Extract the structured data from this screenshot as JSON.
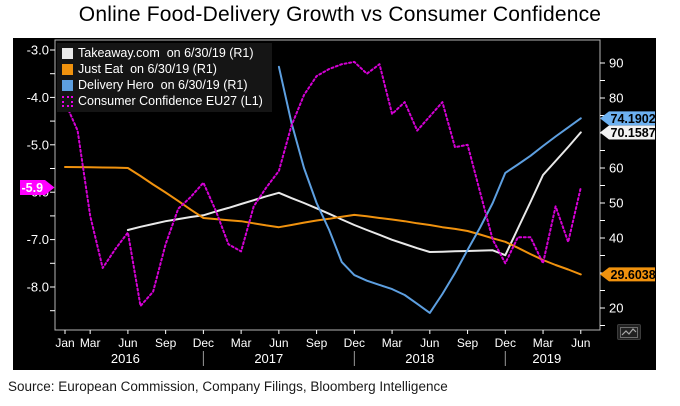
{
  "title": "Online Food-Delivery Growth vs Consumer Confidence",
  "source_line": "Source:  European Commission, Company Filings, Bloomberg Intelligence",
  "colors": {
    "background_panel": "#000000",
    "takeaway": "#e9e9e9",
    "just_eat": "#f0920e",
    "delivery_hero": "#5d9fe0",
    "consumer_confidence": "#d400d4",
    "left_badge_bg": "#ff00ff",
    "badge_blue_bg": "#6db1f1",
    "badge_white_bg": "#f2f2f2",
    "badge_orange_bg": "#f0920e",
    "axis_text": "#ffffff",
    "frame": "#b4b4b4"
  },
  "legend": [
    {
      "id": "takeaway",
      "label": "Takeaway.com  on 6/30/19 (R1)",
      "color": "#e9e9e9",
      "marker": "square"
    },
    {
      "id": "just-eat",
      "label": "Just Eat  on 6/30/19 (R1)",
      "color": "#f0920e",
      "marker": "square"
    },
    {
      "id": "delivery-hero",
      "label": "Delivery Hero  on 6/30/19 (R1)",
      "color": "#5d9fe0",
      "marker": "square"
    },
    {
      "id": "consumer-confidence",
      "label": "Consumer Confidence EU27 (L1)",
      "color": "#e800e8",
      "marker": "dotted-outline"
    }
  ],
  "chart_data": {
    "type": "line",
    "title": "Online Food-Delivery Growth vs Consumer Confidence",
    "x_unit": "monthly, Jan 2016 - Jun 2019",
    "x_categories": [
      "Jan 2016",
      "Feb 2016",
      "Mar 2016",
      "Apr 2016",
      "May 2016",
      "Jun 2016",
      "Jul 2016",
      "Aug 2016",
      "Sep 2016",
      "Oct 2016",
      "Nov 2016",
      "Dec 2016",
      "Jan 2017",
      "Feb 2017",
      "Mar 2017",
      "Apr 2017",
      "May 2017",
      "Jun 2017",
      "Jul 2017",
      "Aug 2017",
      "Sep 2017",
      "Oct 2017",
      "Nov 2017",
      "Dec 2017",
      "Jan 2018",
      "Feb 2018",
      "Mar 2018",
      "Apr 2018",
      "May 2018",
      "Jun 2018",
      "Jul 2018",
      "Aug 2018",
      "Sep 2018",
      "Oct 2018",
      "Nov 2018",
      "Dec 2018",
      "Jan 2019",
      "Feb 2019",
      "Mar 2019",
      "Apr 2019",
      "May 2019",
      "Jun 2019"
    ],
    "left_axis": {
      "side": "L1",
      "range": [
        -8.6,
        -3.0
      ],
      "minor_step": 0.5,
      "ticks": [
        {
          "v": -3.0,
          "label": "-3.0"
        },
        {
          "v": -4.0,
          "label": "-4.0"
        },
        {
          "v": -5.0,
          "label": "-5.0"
        },
        {
          "v": -6.0,
          "label": "-6.0"
        },
        {
          "v": -7.0,
          "label": "-7.0"
        },
        {
          "v": -8.0,
          "label": "-8.0"
        }
      ],
      "badge": {
        "text": "-5.9",
        "value": -5.9,
        "bg": "#ff00ff",
        "fg": "#ffffff"
      }
    },
    "right_axis": {
      "side": "R1",
      "range": [
        14,
        93.5
      ],
      "minor_step": 5,
      "ticks": [
        {
          "v": 90,
          "label": "90"
        },
        {
          "v": 80,
          "label": "80"
        },
        {
          "v": 70,
          "label": "70"
        },
        {
          "v": 60,
          "label": "60"
        },
        {
          "v": 50,
          "label": "50"
        },
        {
          "v": 40,
          "label": "40"
        },
        {
          "v": 30,
          "label": "30"
        },
        {
          "v": 20,
          "label": "20"
        }
      ],
      "badges": [
        {
          "text": "74.1902",
          "value": 74.1902,
          "bg": "#6db1f1",
          "fg": "#000000",
          "series": "Delivery Hero"
        },
        {
          "text": "70.1587",
          "value": 70.1587,
          "bg": "#f2f2f2",
          "fg": "#000000",
          "series": "Takeaway.com"
        },
        {
          "text": "29.6038",
          "value": 29.6038,
          "bg": "#f0920e",
          "fg": "#000000",
          "series": "Just Eat"
        }
      ]
    },
    "x_axis": {
      "month_ticks": [
        {
          "m": 0,
          "label": "Jan"
        },
        {
          "m": 2,
          "label": "Mar"
        },
        {
          "m": 5,
          "label": "Jun"
        },
        {
          "m": 8,
          "label": "Sep"
        },
        {
          "m": 11,
          "label": "Dec"
        },
        {
          "m": 14,
          "label": "Mar"
        },
        {
          "m": 17,
          "label": "Jun"
        },
        {
          "m": 20,
          "label": "Sep"
        },
        {
          "m": 23,
          "label": "Dec"
        },
        {
          "m": 26,
          "label": "Mar"
        },
        {
          "m": 29,
          "label": "Jun"
        },
        {
          "m": 32,
          "label": "Sep"
        },
        {
          "m": 35,
          "label": "Dec"
        },
        {
          "m": 38,
          "label": "Mar"
        },
        {
          "m": 41,
          "label": "Jun"
        }
      ],
      "year_labels": [
        {
          "m": 4.8,
          "label": "2016"
        },
        {
          "m": 16.2,
          "label": "2017"
        },
        {
          "m": 28.2,
          "label": "2018"
        },
        {
          "m": 38.3,
          "label": "2019"
        }
      ],
      "year_separators_m": [
        11,
        23,
        35
      ]
    },
    "series": [
      {
        "name": "Takeaway.com  on 6/30/19",
        "id": "takeaway",
        "axis": "R1",
        "color": "#e9e9e9",
        "style": "solid",
        "values": [
          null,
          null,
          null,
          null,
          null,
          42.3,
          43.2,
          44,
          44.8,
          45.4,
          46,
          46.5,
          47.6,
          48.6,
          49.7,
          50.8,
          51.9,
          52.9,
          51.4,
          50,
          48.5,
          46.9,
          45.3,
          43.7,
          42.3,
          40.9,
          39.5,
          38.3,
          37.1,
          36,
          36.1,
          36.2,
          36.3,
          36.4,
          36.5,
          35.1,
          42.7,
          50.3,
          58,
          62,
          66,
          70.1587
        ]
      },
      {
        "name": "Just Eat  on 6/30/19",
        "id": "just-eat",
        "axis": "R1",
        "color": "#f0920e",
        "style": "solid",
        "values": [
          60.3,
          60.25,
          60.2,
          60.15,
          60.1,
          60,
          57.7,
          55.3,
          53,
          50.6,
          48.1,
          45.7,
          45.4,
          45.1,
          44.8,
          44.2,
          43.6,
          43.1,
          43.7,
          44.4,
          45,
          45.5,
          46.1,
          46.6,
          46.2,
          45.7,
          45.3,
          44.8,
          44.2,
          43.7,
          43.1,
          42.6,
          42,
          41,
          39.9,
          38.9,
          37.2,
          35.4,
          33.7,
          32.3,
          31,
          29.6038
        ]
      },
      {
        "name": "Delivery Hero  on 6/30/19",
        "id": "delivery-hero",
        "axis": "R1",
        "color": "#5d9fe0",
        "style": "solid",
        "values": [
          null,
          null,
          null,
          null,
          null,
          null,
          null,
          null,
          null,
          null,
          null,
          null,
          null,
          null,
          null,
          null,
          null,
          88.9,
          73,
          60,
          50,
          42.3,
          33.1,
          29.4,
          27.8,
          26.6,
          25.4,
          23.7,
          21.2,
          18.6,
          24,
          30,
          36.6,
          43,
          50,
          58.6,
          61,
          63.5,
          66.3,
          69,
          71.6,
          74.1902
        ]
      },
      {
        "name": "Consumer Confidence EU27",
        "id": "consumer-confidence",
        "axis": "L1",
        "color": "#d400d4",
        "style": "dotted",
        "values": [
          -4.1,
          -4.7,
          -6.5,
          -7.6,
          -7.2,
          -6.85,
          -8.4,
          -8.1,
          -7.1,
          -6.35,
          -6.1,
          -5.8,
          -6.4,
          -7.1,
          -7.25,
          -6.3,
          -5.9,
          -5.55,
          -4.6,
          -3.95,
          -3.55,
          -3.4,
          -3.3,
          -3.25,
          -3.5,
          -3.3,
          -4.35,
          -4.1,
          -4.7,
          -4.4,
          -4.1,
          -5.05,
          -5,
          -6,
          -7,
          -7.5,
          -6.95,
          -6.95,
          -7.5,
          -6.3,
          -7.05,
          -5.9
        ]
      }
    ]
  },
  "tool_button": {
    "name": "chart-annotate"
  }
}
